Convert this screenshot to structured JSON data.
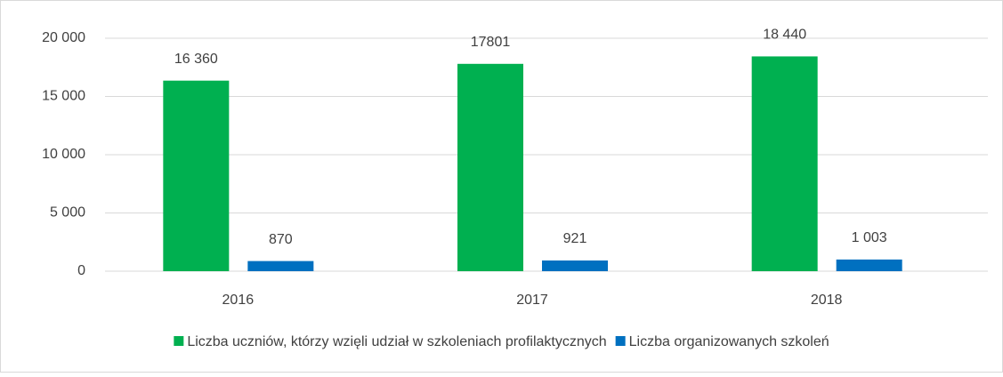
{
  "chart_data": {
    "type": "bar",
    "categories": [
      "2016",
      "2017",
      "2018"
    ],
    "series": [
      {
        "name": "Liczba uczniów, którzy wzięli udział w szkoleniach profilaktycznych",
        "color": "#00b050",
        "values": [
          16360,
          17801,
          18440
        ],
        "value_labels": [
          "16 360",
          "17801",
          "18 440"
        ]
      },
      {
        "name": "Liczba organizowanych szkoleń",
        "color": "#0070c0",
        "values": [
          870,
          921,
          1003
        ],
        "value_labels": [
          "870",
          "921",
          "1 003"
        ]
      }
    ],
    "ylim": [
      0,
      20000
    ],
    "yticks": [
      0,
      {
        "value": 5000,
        "label": "5 000"
      },
      {
        "value": 10000,
        "label": "10 000"
      },
      {
        "value": 15000,
        "label": "15 000"
      },
      {
        "value": 20000,
        "label": "20 000"
      }
    ],
    "grid": true,
    "legend": "bottom"
  }
}
